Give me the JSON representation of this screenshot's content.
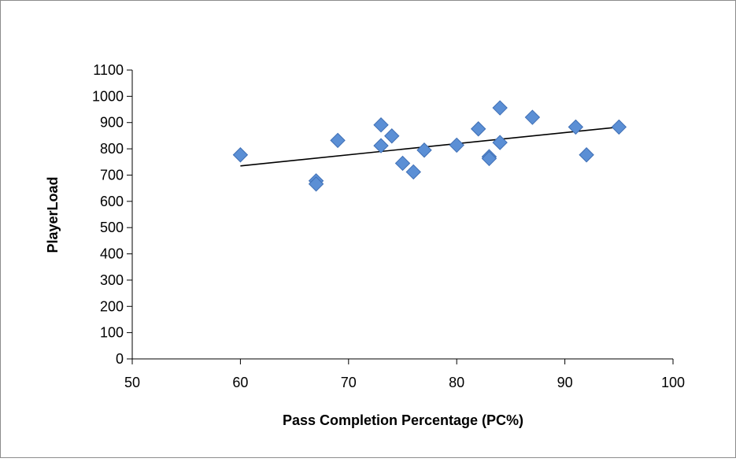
{
  "chart_data": {
    "type": "scatter",
    "title": "",
    "xlabel": "Pass Completion Percentage (PC%)",
    "ylabel": "PlayerLoad",
    "xlim": [
      50,
      100
    ],
    "ylim": [
      0,
      1100
    ],
    "x_ticks": [
      50,
      60,
      70,
      80,
      90,
      100
    ],
    "y_ticks": [
      0,
      100,
      200,
      300,
      400,
      500,
      600,
      700,
      800,
      900,
      1000,
      1100
    ],
    "grid": false,
    "legend": "none",
    "marker": "diamond",
    "marker_color": "#5B8FD5",
    "marker_edge_color": "#3F6FB5",
    "series": [
      {
        "points": [
          {
            "x": 60,
            "y": 777
          },
          {
            "x": 67,
            "y": 678
          },
          {
            "x": 67,
            "y": 666
          },
          {
            "x": 69,
            "y": 832
          },
          {
            "x": 73,
            "y": 891
          },
          {
            "x": 73,
            "y": 812
          },
          {
            "x": 74,
            "y": 849
          },
          {
            "x": 75,
            "y": 745
          },
          {
            "x": 76,
            "y": 712
          },
          {
            "x": 77,
            "y": 795
          },
          {
            "x": 80,
            "y": 814
          },
          {
            "x": 82,
            "y": 876
          },
          {
            "x": 83,
            "y": 770
          },
          {
            "x": 83,
            "y": 763
          },
          {
            "x": 84,
            "y": 956
          },
          {
            "x": 84,
            "y": 824
          },
          {
            "x": 87,
            "y": 920
          },
          {
            "x": 91,
            "y": 883
          },
          {
            "x": 92,
            "y": 777
          },
          {
            "x": 95,
            "y": 883
          }
        ]
      }
    ],
    "trendline": {
      "type": "linear",
      "color": "#000000",
      "from": {
        "x": 60,
        "y": 735
      },
      "to": {
        "x": 95,
        "y": 883
      }
    }
  }
}
